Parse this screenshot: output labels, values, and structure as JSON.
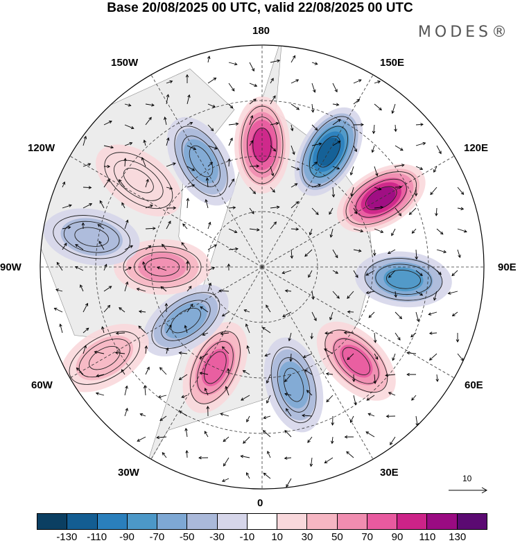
{
  "title": "Base 20/08/2025 00 UTC, valid 22/08/2025 00 UTC",
  "brand": "MODES®",
  "longitude_labels": {
    "lon_180": "180",
    "lon_150e": "150E",
    "lon_120e": "120E",
    "lon_90e": "90E",
    "lon_60e": "60E",
    "lon_30e": "30E",
    "lon_0": "0",
    "lon_30w": "30W",
    "lon_60w": "60W",
    "lon_90w": "90W",
    "lon_120w": "120W",
    "lon_150w": "150W"
  },
  "vector_scale": {
    "label": "10"
  },
  "colorbar": {
    "colors": [
      "#0b3f62",
      "#135d92",
      "#2a7fbc",
      "#4c98c8",
      "#7ea8d4",
      "#aab9da",
      "#d6d6ea",
      "#ffffff",
      "#f9d8dc",
      "#f6b6c3",
      "#f08db0",
      "#e85a9f",
      "#cc2388",
      "#9a0b82",
      "#5b0a72"
    ],
    "ticks": [
      "-130",
      "-110",
      "-90",
      "-70",
      "-50",
      "-30",
      "-10",
      "10",
      "30",
      "50",
      "70",
      "90",
      "110",
      "130"
    ]
  },
  "anomalies": [
    {
      "lon": 180,
      "r": 0.55,
      "value": 90
    },
    {
      "lon": 150,
      "r": 0.6,
      "value": -110
    },
    {
      "lon": 120,
      "r": 0.62,
      "value": 110
    },
    {
      "lon": 85,
      "r": 0.64,
      "value": -80
    },
    {
      "lon": 45,
      "r": 0.6,
      "value": 70
    },
    {
      "lon": 15,
      "r": 0.55,
      "value": -50
    },
    {
      "lon": -25,
      "r": 0.5,
      "value": 80
    },
    {
      "lon": -55,
      "r": 0.42,
      "value": -50
    },
    {
      "lon": -90,
      "r": 0.45,
      "value": 50
    },
    {
      "lon": -100,
      "r": 0.78,
      "value": -40
    },
    {
      "lon": -150,
      "r": 0.55,
      "value": -50
    },
    {
      "lon": -60,
      "r": 0.82,
      "value": 30
    },
    {
      "lon": -125,
      "r": 0.68,
      "value": 20
    }
  ]
}
